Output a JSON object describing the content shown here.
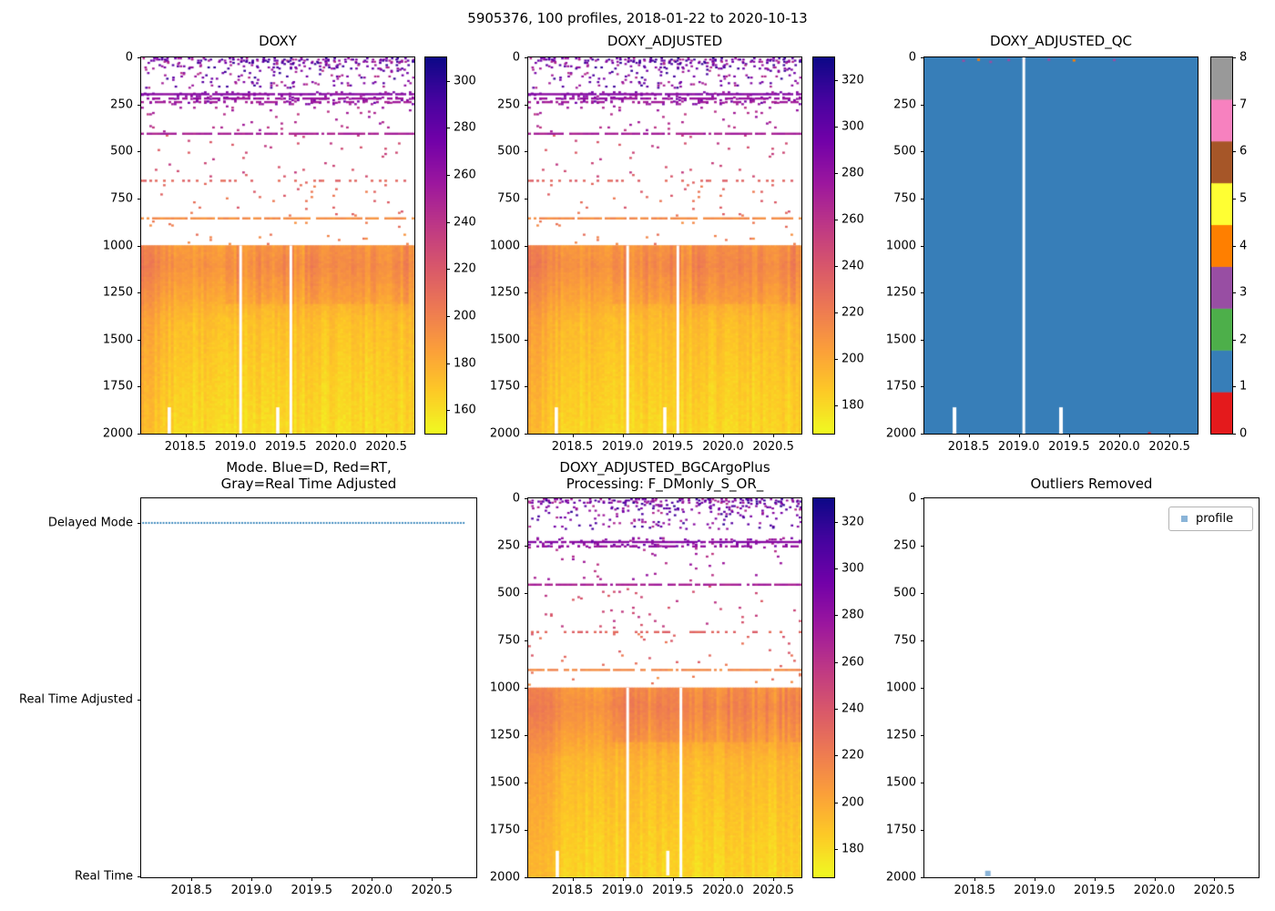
{
  "figure": {
    "title": "5905376, 100 profiles, 2018-01-22 to 2020-10-13"
  },
  "colors": {
    "plasma_stops": [
      [
        13,
        8,
        135
      ],
      [
        70,
        3,
        159
      ],
      [
        114,
        1,
        168
      ],
      [
        156,
        23,
        158
      ],
      [
        189,
        55,
        134
      ],
      [
        216,
        87,
        107
      ],
      [
        237,
        121,
        83
      ],
      [
        251,
        159,
        58
      ],
      [
        253,
        202,
        38
      ],
      [
        240,
        249,
        33
      ]
    ],
    "qc_palette": [
      "#e41a1c",
      "#377eb8",
      "#4daf4a",
      "#984ea3",
      "#ff7f00",
      "#ffff33",
      "#a65628",
      "#f781bf",
      "#999999"
    ],
    "qc_fill": "#377eb8",
    "mode_line": "#1f77b4",
    "outlier_marker": "#8ab4d8",
    "axis": "#000000"
  },
  "chart_data": [
    {
      "type": "heatmap",
      "title": "DOXY",
      "x_range": [
        2018.06,
        2020.78
      ],
      "x_ticks": [
        2018.5,
        2019.0,
        2019.5,
        2020.0,
        2020.5
      ],
      "y_range": [
        0,
        2000
      ],
      "y_ticks": [
        0,
        250,
        500,
        750,
        1000,
        1250,
        1500,
        1750,
        2000
      ],
      "y_inverted": true,
      "n_profiles": 100,
      "colorbar": {
        "vmin": 150,
        "vmax": 310,
        "ticks": [
          160,
          180,
          200,
          220,
          240,
          260,
          280,
          300
        ]
      },
      "features": {
        "surface_scatter": {
          "depth": [
            0,
            160
          ],
          "density": 0.1,
          "value": [
            242,
            300
          ]
        },
        "bands": [
          {
            "depth": [
              180,
              250
            ],
            "density": 0.12,
            "value": [
              248,
              280
            ]
          },
          {
            "depth": [
              255,
              395
            ],
            "density": 0.015,
            "value": [
              235,
              260
            ]
          },
          {
            "depth": [
              410,
              640
            ],
            "density": 0.012,
            "value": [
              215,
              240
            ]
          },
          {
            "depth": [
              660,
              840
            ],
            "density": 0.012,
            "value": [
              200,
              222
            ]
          },
          {
            "depth": [
              860,
              990
            ],
            "density": 0.01,
            "value": [
              190,
              210
            ]
          }
        ],
        "lines": [
          {
            "depth": 190,
            "coverage": 0.9,
            "value": 265
          },
          {
            "depth": 213,
            "coverage": 0.55,
            "value": 258
          },
          {
            "depth": 232,
            "coverage": 0.4,
            "value": 253
          },
          {
            "depth": 400,
            "coverage": 0.82,
            "value": 250
          },
          {
            "depth": 650,
            "coverage": 0.3,
            "value": 213
          },
          {
            "depth": 850,
            "coverage": 0.82,
            "value": 194
          }
        ],
        "dense": {
          "depth": [
            1000,
            2000
          ],
          "profile": [
            {
              "d": 1000,
              "v": 186
            },
            {
              "d": 1100,
              "v": 190
            },
            {
              "d": 1250,
              "v": 182
            },
            {
              "d": 1400,
              "v": 172
            },
            {
              "d": 1700,
              "v": 166
            },
            {
              "d": 2000,
              "v": 161
            }
          ],
          "left_boost": 16,
          "band": {
            "depth": [
              1000,
              1300
            ],
            "amount": 10
          },
          "col_noise": 5,
          "cell_noise": 3
        }
      },
      "gaps": [
        2019.05,
        2019.55
      ],
      "bottom_gaps": [
        {
          "x": 2018.34,
          "depth": [
            1860,
            2000
          ]
        },
        {
          "x": 2019.42,
          "depth": [
            1860,
            2000
          ]
        }
      ]
    },
    {
      "type": "heatmap",
      "title": "DOXY_ADJUSTED",
      "x_range": [
        2018.06,
        2020.78
      ],
      "x_ticks": [
        2018.5,
        2019.0,
        2019.5,
        2020.0,
        2020.5
      ],
      "y_range": [
        0,
        2000
      ],
      "y_ticks": [
        0,
        250,
        500,
        750,
        1000,
        1250,
        1500,
        1750,
        2000
      ],
      "y_inverted": true,
      "n_profiles": 100,
      "colorbar": {
        "vmin": 168,
        "vmax": 330,
        "ticks": [
          180,
          200,
          220,
          240,
          260,
          280,
          300,
          320
        ]
      },
      "same_pattern_as": "DOXY",
      "value_offset": 20,
      "gaps": [
        2019.05,
        2019.55
      ],
      "bottom_gaps": [
        {
          "x": 2018.34,
          "depth": [
            1860,
            2000
          ]
        },
        {
          "x": 2019.42,
          "depth": [
            1860,
            2000
          ]
        }
      ]
    },
    {
      "type": "heatmap_qc",
      "title": "DOXY_ADJUSTED_QC",
      "x_range": [
        2018.06,
        2020.78
      ],
      "x_ticks": [
        2018.5,
        2019.0,
        2019.5,
        2020.0,
        2020.5
      ],
      "y_range": [
        0,
        2000
      ],
      "y_ticks": [
        0,
        250,
        500,
        750,
        1000,
        1250,
        1500,
        1750,
        2000
      ],
      "y_inverted": true,
      "dominant_qc": 1,
      "colorbar": {
        "ticks": [
          0,
          1,
          2,
          3,
          4,
          5,
          6,
          7,
          8
        ]
      },
      "gaps": [
        2019.05
      ],
      "bottom_gaps": [
        {
          "x": 2018.36,
          "depth": [
            1860,
            2000
          ]
        },
        {
          "x": 2019.42,
          "depth": [
            1860,
            2000
          ]
        }
      ],
      "specks": [
        {
          "x": 2018.45,
          "depth": 12,
          "qc": 3
        },
        {
          "x": 2018.6,
          "depth": 6,
          "qc": 4
        },
        {
          "x": 2018.72,
          "depth": 18,
          "qc": 3
        },
        {
          "x": 2018.9,
          "depth": 8,
          "qc": 3
        },
        {
          "x": 2019.05,
          "depth": 14,
          "qc": 3
        },
        {
          "x": 2019.3,
          "depth": 6,
          "qc": 3
        },
        {
          "x": 2019.55,
          "depth": 10,
          "qc": 4
        },
        {
          "x": 2019.95,
          "depth": 8,
          "qc": 3
        },
        {
          "x": 2020.3,
          "depth": 1992,
          "qc": 0
        }
      ]
    },
    {
      "type": "line",
      "title_line1": "Mode. Blue=D, Red=RT,",
      "title_line2": "Gray=Real Time Adjusted",
      "x_range": [
        2018.08,
        2020.87
      ],
      "x_ticks": [
        2018.5,
        2019.0,
        2019.5,
        2020.0,
        2020.5
      ],
      "y_categories": [
        "Delayed Mode",
        "Real Time Adjusted",
        "Real Time"
      ],
      "series": [
        {
          "name": "mode",
          "y_category": "Delayed Mode",
          "style": "dotted",
          "x_start": 2018.09,
          "x_end": 2020.78
        }
      ]
    },
    {
      "type": "heatmap",
      "title_line1": "DOXY_ADJUSTED_BGCArgoPlus",
      "title_line2": "Processing: F_DMonly_S_OR_",
      "x_range": [
        2018.06,
        2020.78
      ],
      "x_ticks": [
        2018.5,
        2019.0,
        2019.5,
        2020.0,
        2020.5
      ],
      "y_range": [
        0,
        2000
      ],
      "y_ticks": [
        0,
        250,
        500,
        750,
        1000,
        1250,
        1500,
        1750,
        2000
      ],
      "y_inverted": true,
      "n_profiles": 100,
      "colorbar": {
        "vmin": 168,
        "vmax": 330,
        "ticks": [
          180,
          200,
          220,
          240,
          260,
          280,
          300,
          320
        ]
      },
      "features": {
        "surface_scatter": {
          "depth": [
            0,
            160
          ],
          "density": 0.1,
          "value": [
            262,
            320
          ]
        },
        "bands": [
          {
            "depth": [
              205,
              255
            ],
            "density": 0.14,
            "value": [
              268,
              300
            ]
          },
          {
            "depth": [
              260,
              430
            ],
            "density": 0.012,
            "value": [
              255,
              280
            ]
          },
          {
            "depth": [
              460,
              680
            ],
            "density": 0.012,
            "value": [
              235,
              260
            ]
          },
          {
            "depth": [
              705,
              885
            ],
            "density": 0.012,
            "value": [
              220,
              242
            ]
          },
          {
            "depth": [
              915,
              990
            ],
            "density": 0.01,
            "value": [
              210,
              230
            ]
          }
        ],
        "lines": [
          {
            "depth": 225,
            "coverage": 0.88,
            "value": 285
          },
          {
            "depth": 248,
            "coverage": 0.5,
            "value": 278
          },
          {
            "depth": 450,
            "coverage": 0.82,
            "value": 270
          },
          {
            "depth": 700,
            "coverage": 0.3,
            "value": 233
          },
          {
            "depth": 900,
            "coverage": 0.85,
            "value": 214
          }
        ],
        "dense": {
          "depth": [
            1000,
            2000
          ],
          "profile": [
            {
              "d": 1000,
              "v": 206
            },
            {
              "d": 1100,
              "v": 210
            },
            {
              "d": 1250,
              "v": 202
            },
            {
              "d": 1400,
              "v": 192
            },
            {
              "d": 1700,
              "v": 186
            },
            {
              "d": 2000,
              "v": 181
            }
          ],
          "left_boost": 16,
          "band": {
            "depth": [
              1000,
              1280
            ],
            "amount": 11
          },
          "col_noise": 5,
          "cell_noise": 3
        }
      },
      "gaps": [
        2019.05,
        2019.58
      ],
      "bottom_gaps": [
        {
          "x": 2018.35,
          "depth": [
            1860,
            2000
          ]
        },
        {
          "x": 2019.45,
          "depth": [
            1860,
            1990
          ]
        }
      ]
    },
    {
      "type": "scatter",
      "title": "Outliers Removed",
      "x_range": [
        2018.08,
        2020.87
      ],
      "x_ticks": [
        2018.5,
        2019.0,
        2019.5,
        2020.0,
        2020.5
      ],
      "y_range": [
        0,
        2000
      ],
      "y_ticks": [
        0,
        250,
        500,
        750,
        1000,
        1250,
        1500,
        1750,
        2000
      ],
      "y_inverted": true,
      "legend": {
        "label": "profile"
      },
      "points": [
        {
          "x": 2018.61,
          "depth": 1980
        }
      ]
    }
  ]
}
